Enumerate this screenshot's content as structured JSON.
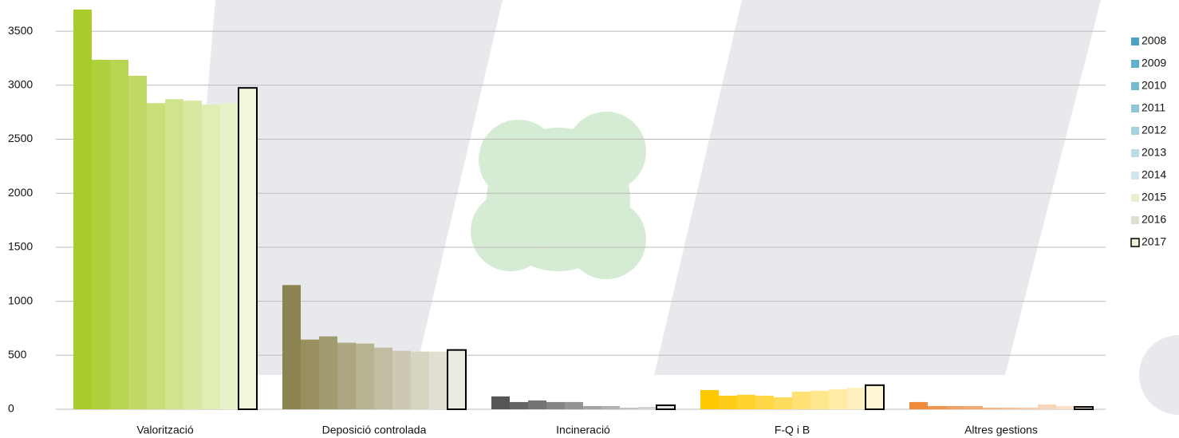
{
  "chart_data": {
    "type": "bar",
    "categories": [
      "Valorització",
      "Deposició controlada",
      "Incineració",
      "F-Q i B",
      "Altres gestions"
    ],
    "category_colors": [
      "#a8cc2a",
      "#8c8450",
      "#555555",
      "#ffc800",
      "#ef8a3c"
    ],
    "series": [
      {
        "name": "2008",
        "color": "#4aa3c0",
        "values": [
          3700,
          1150,
          119,
          178,
          67
        ]
      },
      {
        "name": "2009",
        "color": "#62afc8",
        "values": [
          3235,
          645,
          67,
          126,
          30
        ]
      },
      {
        "name": "2010",
        "color": "#79bacf",
        "values": [
          3235,
          675,
          82,
          134,
          30
        ]
      },
      {
        "name": "2011",
        "color": "#90c6d6",
        "values": [
          3087,
          616,
          67,
          126,
          30
        ]
      },
      {
        "name": "2012",
        "color": "#a6d1de",
        "values": [
          2834,
          608,
          67,
          111,
          15
        ]
      },
      {
        "name": "2013",
        "color": "#bcdce6",
        "values": [
          2871,
          571,
          30,
          163,
          15
        ]
      },
      {
        "name": "2014",
        "color": "#d0e6ec",
        "values": [
          2857,
          542,
          30,
          171,
          15
        ]
      },
      {
        "name": "2015",
        "color": "#e6f1d2",
        "values": [
          2820,
          534,
          15,
          186,
          45
        ]
      },
      {
        "name": "2016",
        "color": "#e0dfd0",
        "values": [
          2834,
          534,
          22,
          200,
          30
        ]
      },
      {
        "name": "2017",
        "color": "#f1efd8",
        "edgecolor": "#000000",
        "values": [
          2975,
          549,
          37,
          223,
          22
        ]
      }
    ],
    "ylim": [
      0,
      3700
    ],
    "yticks": [
      0,
      500,
      1000,
      1500,
      2000,
      2500,
      3000,
      3500
    ],
    "grid": true,
    "legend": "right"
  }
}
